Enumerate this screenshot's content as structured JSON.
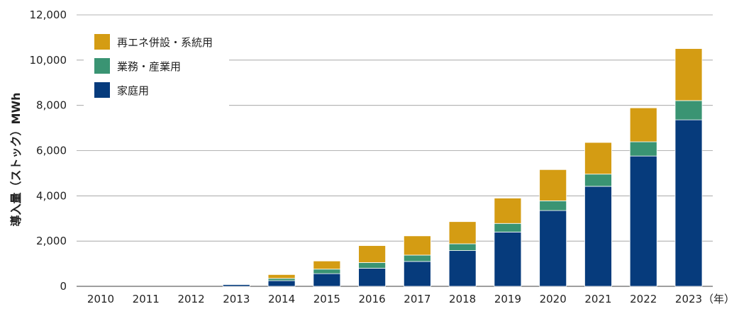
{
  "chart_data": {
    "type": "bar",
    "stacked": true,
    "categories": [
      "2010",
      "2011",
      "2012",
      "2013",
      "2014",
      "2015",
      "2016",
      "2017",
      "2018",
      "2019",
      "2020",
      "2021",
      "2022",
      "2023"
    ],
    "x_unit": "（年）",
    "ylabel": "導入量（ストック）MWh",
    "ylim": [
      0,
      12000
    ],
    "yticks": [
      0,
      2000,
      4000,
      6000,
      8000,
      10000,
      12000
    ],
    "ytick_labels": [
      "0",
      "2,000",
      "4,000",
      "6,000",
      "8,000",
      "10,000",
      "12,000"
    ],
    "grid": true,
    "legend_position": "top-left",
    "series": [
      {
        "name": "家庭用",
        "color": "#063b7c",
        "values": [
          0,
          0,
          0,
          80,
          250,
          560,
          800,
          1100,
          1580,
          2400,
          3350,
          4420,
          5760,
          7360
        ]
      },
      {
        "name": "業務・産業用",
        "color": "#3a9473",
        "values": [
          0,
          0,
          0,
          20,
          100,
          200,
          250,
          280,
          300,
          380,
          430,
          540,
          630,
          850
        ]
      },
      {
        "name": "再エネ併設・系統用",
        "color": "#d49c13",
        "values": [
          0,
          0,
          0,
          0,
          170,
          360,
          750,
          850,
          980,
          1120,
          1380,
          1400,
          1500,
          2300
        ]
      }
    ],
    "legend_order": [
      2,
      1,
      0
    ]
  }
}
